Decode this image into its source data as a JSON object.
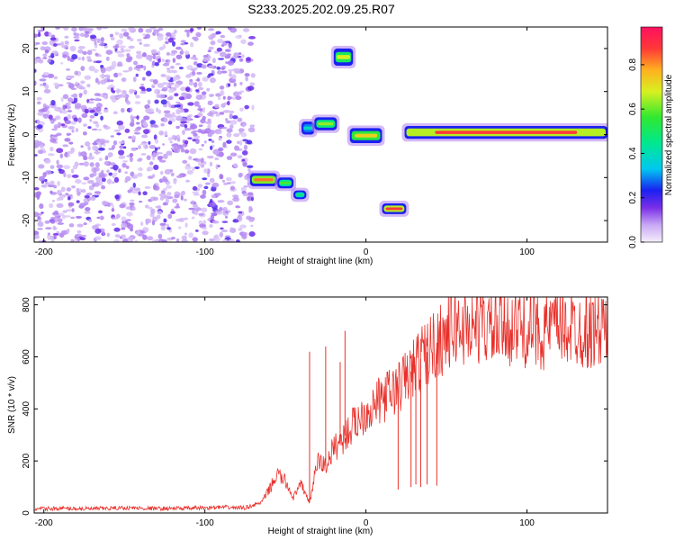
{
  "title": "S233.2025.202.09.25.R07",
  "chart_data": [
    {
      "type": "heatmap",
      "xlabel": "Height of straight line (km)",
      "ylabel": "Frequency (Hz)",
      "xlim": [
        -206,
        150
      ],
      "ylim": [
        -25,
        25
      ],
      "xticks": [
        -200,
        -100,
        0,
        100
      ],
      "yticks": [
        -20,
        -10,
        0,
        10,
        20
      ],
      "colorbar": {
        "label": "Normalized spectral amplitude",
        "range": [
          0,
          0.97
        ],
        "ticks": [
          0.0,
          0.2,
          0.4,
          0.6,
          0.8
        ]
      },
      "features": [
        {
          "x0": -206,
          "x1": -70,
          "f0": -25,
          "f1": 25,
          "level": 0.15,
          "kind": "noise"
        },
        {
          "x0": -72,
          "x1": -55,
          "f0": -12,
          "f1": -9,
          "level": 0.85
        },
        {
          "x0": -55,
          "x1": -45,
          "f0": -12.5,
          "f1": -10,
          "level": 0.6
        },
        {
          "x0": -45,
          "x1": -37,
          "f0": -15,
          "f1": -13,
          "level": 0.5
        },
        {
          "x0": -40,
          "x1": -32,
          "f0": 0,
          "f1": 3,
          "level": 0.4
        },
        {
          "x0": -32,
          "x1": -18,
          "f0": 1,
          "f1": 4,
          "level": 0.65
        },
        {
          "x0": -20,
          "x1": -8,
          "f0": 16,
          "f1": 20,
          "level": 0.7
        },
        {
          "x0": -10,
          "x1": 10,
          "f0": -2,
          "f1": 1.5,
          "level": 0.75
        },
        {
          "x0": 10,
          "x1": 25,
          "f0": -18.5,
          "f1": -16,
          "level": 0.9
        },
        {
          "x0": 24,
          "x1": 150,
          "f0": -1,
          "f1": 2,
          "level": 0.9
        }
      ]
    },
    {
      "type": "line",
      "xlabel": "Height of straight line (km)",
      "ylabel": "SNR (10 * v/v)",
      "xlim": [
        -206,
        150
      ],
      "ylim": [
        0,
        830
      ],
      "xticks": [
        -200,
        -100,
        0,
        100
      ],
      "yticks": [
        0,
        200,
        400,
        600,
        800
      ],
      "series": [
        {
          "color": "#e8302a",
          "x": [
            -206,
            -190,
            -170,
            -150,
            -130,
            -110,
            -90,
            -75,
            -65,
            -60,
            -55,
            -50,
            -45,
            -40,
            -35,
            -30,
            -25,
            -20,
            -15,
            -10,
            -5,
            0,
            5,
            10,
            15,
            20,
            25,
            30,
            35,
            40,
            45,
            50,
            55,
            60,
            70,
            80,
            90,
            100,
            110,
            120,
            130,
            140,
            150
          ],
          "values": [
            15,
            18,
            16,
            20,
            17,
            18,
            22,
            20,
            40,
            90,
            150,
            120,
            60,
            110,
            40,
            200,
            180,
            250,
            280,
            320,
            360,
            390,
            410,
            440,
            460,
            480,
            520,
            560,
            600,
            630,
            660,
            690,
            720,
            710,
            730,
            700,
            720,
            710,
            700,
            720,
            710,
            700,
            720
          ]
        }
      ],
      "spikes": [
        {
          "x": -35,
          "value": 620
        },
        {
          "x": -25,
          "value": 640
        },
        {
          "x": -16,
          "value": 580
        },
        {
          "x": -13,
          "value": 700
        },
        {
          "x": 20,
          "value": 90
        },
        {
          "x": 28,
          "value": 100
        },
        {
          "x": 31,
          "value": 110
        },
        {
          "x": 34,
          "value": 100
        },
        {
          "x": 38,
          "value": 110
        },
        {
          "x": 44,
          "value": 105
        }
      ]
    }
  ]
}
